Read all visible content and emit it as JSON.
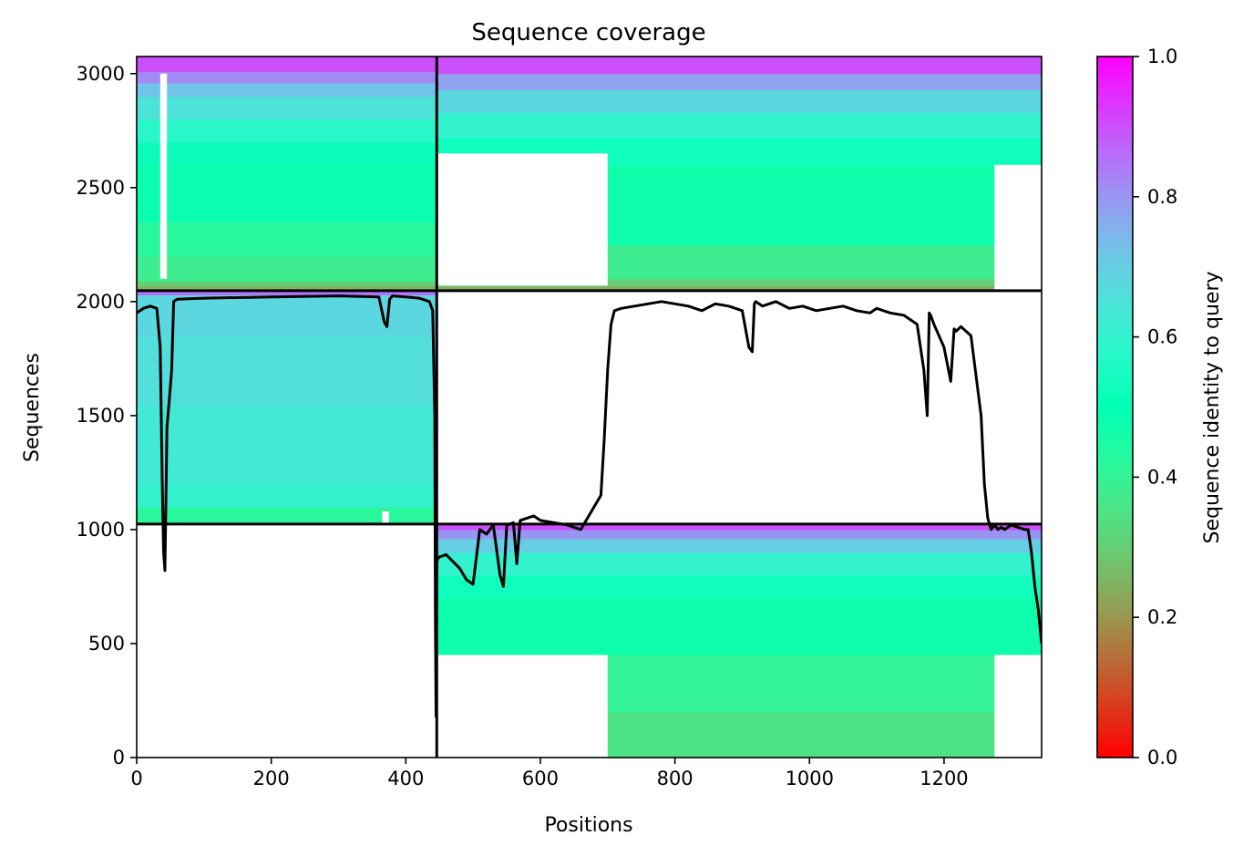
{
  "chart_data": {
    "type": "heatmap",
    "title": "Sequence coverage",
    "xlabel": "Positions",
    "ylabel": "Sequences",
    "xlim": [
      0,
      1345
    ],
    "ylim": [
      0,
      3075
    ],
    "xticks": [
      0,
      200,
      400,
      600,
      800,
      1000,
      1200
    ],
    "yticks": [
      0,
      500,
      1000,
      1500,
      2000,
      2500,
      3000
    ],
    "colormap": "rainbow_r",
    "colorbar": {
      "label": "Sequence identity to query",
      "range": [
        0,
        1
      ],
      "ticks": [
        "0.0",
        "0.2",
        "0.4",
        "0.6",
        "0.8",
        "1.0"
      ]
    },
    "block_boundaries": {
      "x": [
        446
      ],
      "y": [
        1024,
        2048
      ]
    },
    "blocks": [
      {
        "name": "block-top-left",
        "x_range": [
          0,
          446
        ],
        "y_range": [
          2048,
          3075
        ],
        "identity_bands": [
          {
            "y": [
              2048,
              2070
            ],
            "identity": 0.25
          },
          {
            "y": [
              2070,
              2090
            ],
            "identity": 0.3
          },
          {
            "y": [
              2090,
              2200
            ],
            "identity": 0.38
          },
          {
            "y": [
              2200,
              2350
            ],
            "identity": 0.42
          },
          {
            "y": [
              2350,
              2600
            ],
            "identity": 0.48
          },
          {
            "y": [
              2600,
              2700
            ],
            "identity": 0.52
          },
          {
            "y": [
              2700,
              2800
            ],
            "identity": 0.58
          },
          {
            "y": [
              2800,
              2900
            ],
            "identity": 0.65
          },
          {
            "y": [
              2900,
              2960
            ],
            "identity": 0.72
          },
          {
            "y": [
              2960,
              3010
            ],
            "identity": 0.82
          },
          {
            "y": [
              3010,
              3075
            ],
            "identity": 0.9
          }
        ]
      },
      {
        "name": "block-middle-left",
        "x_range": [
          0,
          446
        ],
        "y_range": [
          1024,
          2048
        ],
        "identity_bands": [
          {
            "y": [
              1024,
              1100
            ],
            "identity": 0.42
          },
          {
            "y": [
              1100,
              1200
            ],
            "identity": 0.6
          },
          {
            "y": [
              1200,
              1550
            ],
            "identity": 0.63
          },
          {
            "y": [
              1550,
              1850
            ],
            "identity": 0.66
          },
          {
            "y": [
              1850,
              2030
            ],
            "identity": 0.68
          },
          {
            "y": [
              2030,
              2048
            ],
            "identity": 0.85
          }
        ]
      },
      {
        "name": "block-top-right",
        "x_range": [
          446,
          1345
        ],
        "y_range": [
          2048,
          3075
        ],
        "identity_bands": [
          {
            "y": [
              2048,
              2070
            ],
            "identity": 0.25
          },
          {
            "y": [
              2070,
              2100
            ],
            "identity": 0.3
          },
          {
            "y": [
              2100,
              2250
            ],
            "identity": 0.38
          },
          {
            "y": [
              2250,
              2600
            ],
            "identity": 0.47
          },
          {
            "y": [
              2600,
              2720
            ],
            "identity": 0.53
          },
          {
            "y": [
              2720,
              2830
            ],
            "identity": 0.6
          },
          {
            "y": [
              2830,
              2930
            ],
            "identity": 0.68
          },
          {
            "y": [
              2930,
              3000
            ],
            "identity": 0.78
          },
          {
            "y": [
              3000,
              3075
            ],
            "identity": 0.9
          }
        ]
      },
      {
        "name": "block-bottom-right",
        "x_range": [
          446,
          1345
        ],
        "y_range": [
          0,
          1024
        ],
        "identity_bands": [
          {
            "y": [
              0,
              200
            ],
            "identity": 0.35
          },
          {
            "y": [
              200,
              450
            ],
            "identity": 0.4
          },
          {
            "y": [
              450,
              700
            ],
            "identity": 0.47
          },
          {
            "y": [
              700,
              800
            ],
            "identity": 0.53
          },
          {
            "y": [
              800,
              900
            ],
            "identity": 0.6
          },
          {
            "y": [
              900,
              960
            ],
            "identity": 0.7
          },
          {
            "y": [
              960,
              1000
            ],
            "identity": 0.8
          },
          {
            "y": [
              1000,
              1024
            ],
            "identity": 0.9
          }
        ]
      }
    ],
    "gaps": [
      {
        "x": [
          446,
          700
        ],
        "y": [
          2070,
          2650
        ]
      },
      {
        "x": [
          446,
          700
        ],
        "y": [
          0,
          450
        ]
      },
      {
        "x": [
          1275,
          1345
        ],
        "y": [
          2048,
          2600
        ]
      },
      {
        "x": [
          1275,
          1345
        ],
        "y": [
          0,
          450
        ]
      },
      {
        "x": [
          35,
          45
        ],
        "y": [
          2100,
          3000
        ]
      },
      {
        "x": [
          365,
          375
        ],
        "y": [
          1024,
          1080
        ]
      }
    ],
    "coverage_line": {
      "x": [
        0,
        5,
        10,
        20,
        30,
        35,
        38,
        40,
        42,
        45,
        48,
        52,
        55,
        60,
        100,
        200,
        300,
        360,
        368,
        372,
        376,
        380,
        400,
        420,
        435,
        440,
        443,
        444,
        445,
        446,
        447,
        450,
        460,
        470,
        480,
        490,
        500,
        510,
        520,
        530,
        540,
        545,
        550,
        560,
        565,
        570,
        580,
        590,
        600,
        620,
        640,
        660,
        680,
        690,
        695,
        700,
        705,
        710,
        720,
        740,
        760,
        780,
        800,
        820,
        840,
        860,
        880,
        900,
        910,
        915,
        918,
        920,
        930,
        950,
        970,
        990,
        1010,
        1030,
        1050,
        1070,
        1090,
        1100,
        1120,
        1140,
        1160,
        1170,
        1175,
        1178,
        1180,
        1185,
        1200,
        1210,
        1215,
        1218,
        1225,
        1240,
        1255,
        1260,
        1265,
        1270,
        1275,
        1280,
        1285,
        1290,
        1300,
        1310,
        1320,
        1325,
        1330,
        1335,
        1340,
        1345
      ],
      "y": [
        1950,
        1960,
        1970,
        1980,
        1970,
        1800,
        1200,
        900,
        820,
        1450,
        1550,
        1700,
        2000,
        2010,
        2015,
        2020,
        2025,
        2020,
        1910,
        1890,
        2010,
        2025,
        2020,
        2015,
        2000,
        1960,
        1500,
        600,
        180,
        850,
        870,
        880,
        890,
        860,
        830,
        780,
        760,
        1000,
        980,
        1020,
        800,
        750,
        1020,
        1030,
        850,
        1040,
        1050,
        1060,
        1040,
        1030,
        1020,
        1000,
        1100,
        1150,
        1400,
        1700,
        1900,
        1960,
        1970,
        1980,
        1990,
        2000,
        1990,
        1980,
        1960,
        1990,
        1980,
        1960,
        1800,
        1780,
        1990,
        2000,
        1980,
        2000,
        1970,
        1980,
        1960,
        1970,
        1980,
        1960,
        1950,
        1970,
        1950,
        1940,
        1900,
        1700,
        1500,
        1950,
        1940,
        1900,
        1800,
        1650,
        1880,
        1870,
        1890,
        1850,
        1500,
        1200,
        1050,
        1000,
        1020,
        1000,
        1010,
        1000,
        1020,
        1010,
        1000,
        1000,
        900,
        750,
        650,
        500
      ]
    }
  }
}
